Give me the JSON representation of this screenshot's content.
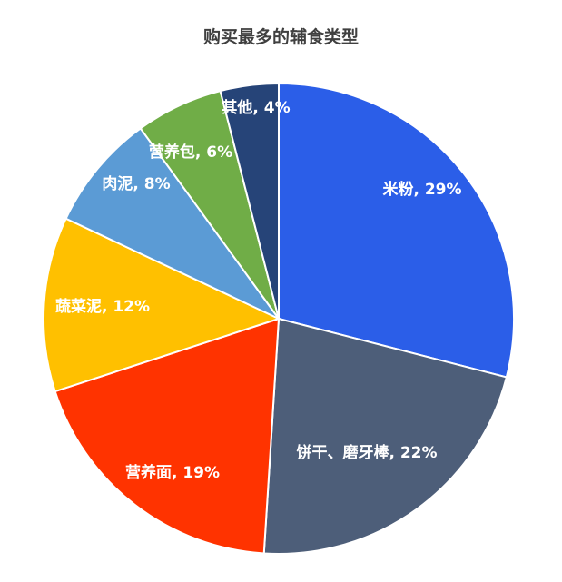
{
  "chart_data": {
    "type": "pie",
    "title": "购买最多的辅食类型",
    "start": "top",
    "direction": "clockwise",
    "slices": [
      {
        "label": "米粉",
        "value": 29,
        "display": "米粉, 29%",
        "color": "#2B5EE8"
      },
      {
        "label": "饼干、磨牙棒",
        "value": 22,
        "display": "饼干、磨牙棒, 22%",
        "color": "#4D5E79"
      },
      {
        "label": "营养面",
        "value": 19,
        "display": "营养面, 19%",
        "color": "#FF3300"
      },
      {
        "label": "蔬菜泥",
        "value": 12,
        "display": "蔬菜泥, 12%",
        "color": "#FFC000"
      },
      {
        "label": "肉泥",
        "value": 8,
        "display": "肉泥, 8%",
        "color": "#5B9BD5"
      },
      {
        "label": "营养包",
        "value": 6,
        "display": "营养包, 6%",
        "color": "#70AD47"
      },
      {
        "label": "其他",
        "value": 4,
        "display": "其他, 4%",
        "color": "#264478"
      }
    ]
  }
}
